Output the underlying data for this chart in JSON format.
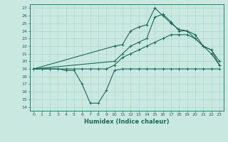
{
  "title": "",
  "xlabel": "Humidex (Indice chaleur)",
  "ylabel": "",
  "bg_color": "#c8e8e0",
  "line_color": "#1a6b5a",
  "grid_color": "#b0d8d0",
  "xlim": [
    -0.5,
    23.5
  ],
  "ylim": [
    13.5,
    27.5
  ],
  "xticks": [
    0,
    1,
    2,
    3,
    4,
    5,
    6,
    7,
    8,
    9,
    10,
    11,
    12,
    13,
    14,
    15,
    16,
    17,
    18,
    19,
    20,
    21,
    22,
    23
  ],
  "yticks": [
    14,
    15,
    16,
    17,
    18,
    19,
    20,
    21,
    22,
    23,
    24,
    25,
    26,
    27
  ],
  "line1_x": [
    0,
    1,
    2,
    3,
    4,
    5,
    6,
    7,
    8,
    9,
    10,
    11,
    12,
    13,
    14,
    15,
    16,
    17,
    18,
    19,
    20,
    21,
    22,
    23
  ],
  "line1_y": [
    19,
    19,
    19,
    19,
    18.8,
    18.8,
    17,
    14.5,
    14.5,
    16.2,
    18.8,
    19,
    19,
    19,
    19,
    19,
    19,
    19,
    19,
    19,
    19,
    19,
    19,
    19
  ],
  "line2_x": [
    0,
    1,
    2,
    3,
    4,
    5,
    6,
    7,
    8,
    9,
    10,
    11,
    12,
    13,
    14,
    15,
    16,
    17,
    18,
    19,
    20,
    21,
    22,
    23
  ],
  "line2_y": [
    19,
    19,
    19,
    19,
    19,
    19,
    19,
    19,
    19,
    19,
    19.5,
    20.5,
    21,
    21.5,
    22,
    22.5,
    23,
    23.5,
    23.5,
    23.5,
    23,
    22,
    21,
    19.5
  ],
  "line3_x": [
    0,
    10,
    11,
    12,
    13,
    14,
    15,
    16,
    17,
    18,
    19,
    20,
    21,
    22,
    23
  ],
  "line3_y": [
    19,
    22,
    22.2,
    24,
    24.5,
    24.8,
    27,
    26,
    25,
    24.2,
    24,
    23,
    22,
    21.5,
    19.5
  ],
  "line4_x": [
    0,
    10,
    11,
    12,
    13,
    14,
    15,
    16,
    17,
    18,
    19,
    20,
    21,
    22,
    23
  ],
  "line4_y": [
    19,
    20,
    21,
    22,
    22.5,
    23,
    25.8,
    26.2,
    25.2,
    24,
    24,
    23.5,
    22,
    21.5,
    20
  ]
}
